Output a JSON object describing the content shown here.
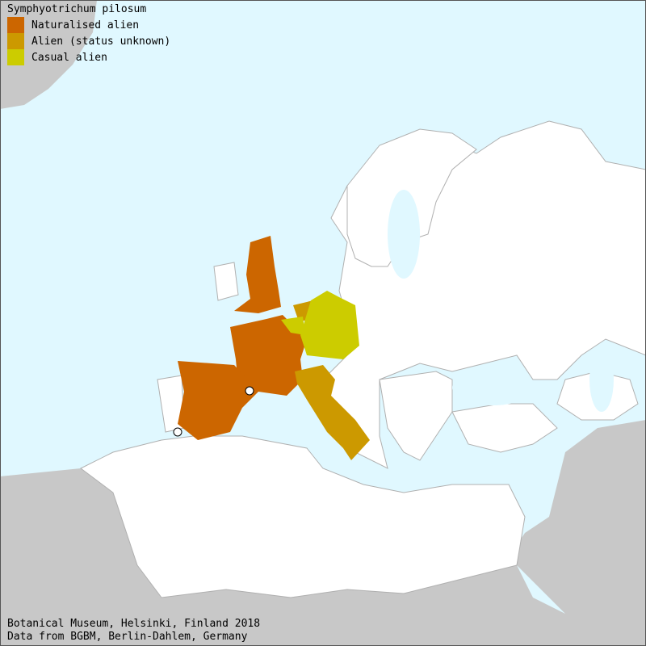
{
  "title": "Symphyotrichum pilosum",
  "legend": [
    {
      "label": "Naturalised alien",
      "color": "#cc6600"
    },
    {
      "label": "Alien (status unknown)",
      "color": "#cc9900"
    },
    {
      "label": "Casual alien",
      "color": "#cccc00"
    }
  ],
  "colors": {
    "sea": "#e0f8ff",
    "land": "#ffffff",
    "outside": "#c8c8c8",
    "border": "#b0b0b0"
  },
  "regions": {
    "naturalised": [
      "Great Britain",
      "France",
      "Spain"
    ],
    "unknown": [
      "Italy",
      "Netherlands"
    ],
    "casual": [
      "Germany",
      "Belgium"
    ]
  },
  "footer": {
    "line1": "Botanical Museum, Helsinki, Finland 2018",
    "line2": "Data from BGBM, Berlin-Dahlem, Germany"
  }
}
